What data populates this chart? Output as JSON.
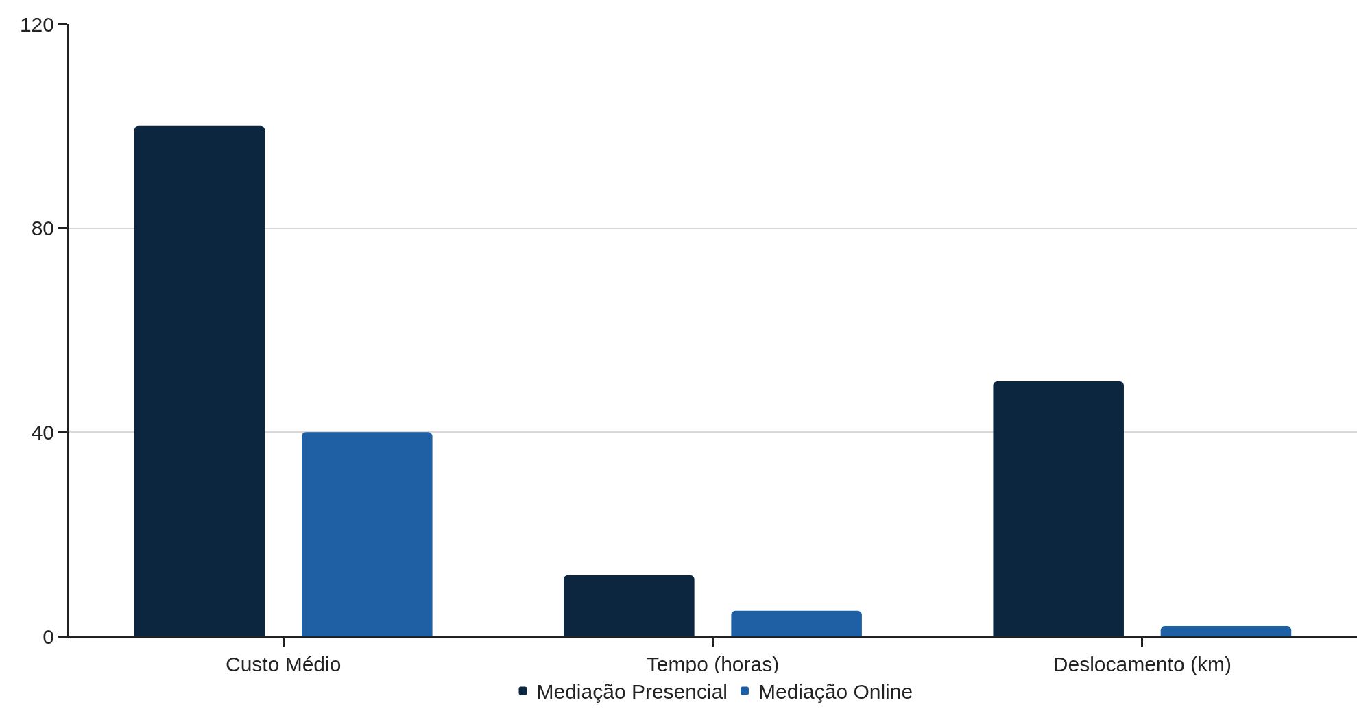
{
  "chart_data": {
    "type": "bar",
    "categories": [
      "Custo Médio",
      "Tempo (horas)",
      "Deslocamento (km)"
    ],
    "series": [
      {
        "name": "Mediação Presencial",
        "color": "#0d2640",
        "values": [
          100,
          12,
          50
        ]
      },
      {
        "name": "Mediação Online",
        "color": "#1f5fa3",
        "values": [
          40,
          5,
          2
        ]
      }
    ],
    "ylim": [
      0,
      120
    ],
    "yticks": [
      0,
      40,
      80,
      120
    ],
    "grid": "y",
    "legend": "bottom"
  }
}
